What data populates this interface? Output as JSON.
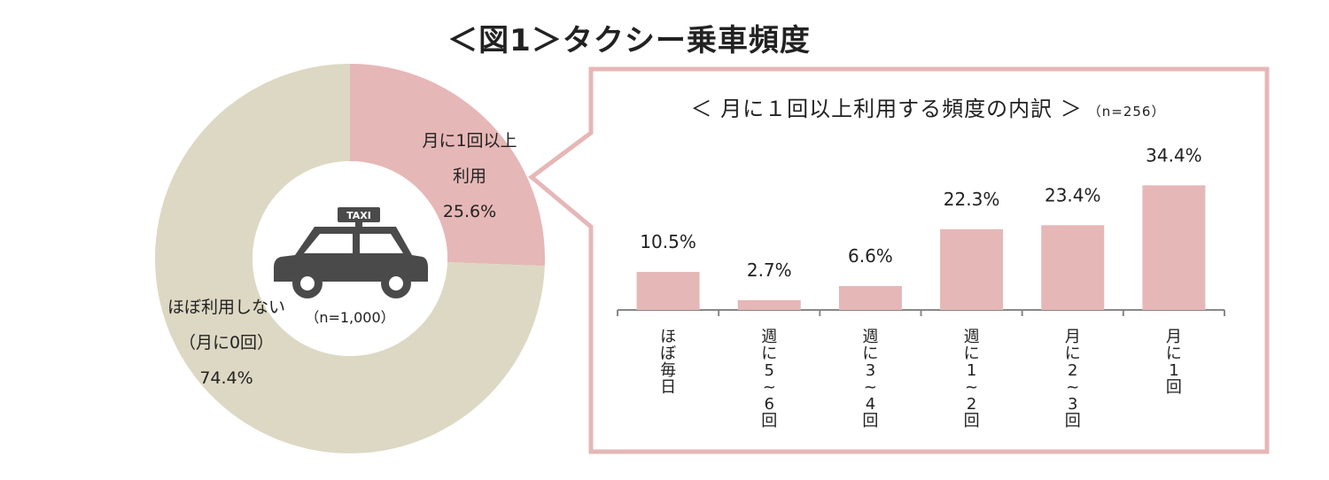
{
  "title": "＜図1＞タクシー乗車頻度",
  "donut": {
    "n": "（n=1,000）",
    "icon": "taxi-icon",
    "icon_text": "TAXI",
    "slices": [
      {
        "label_lines": [
          "月に1回以上",
          "利用"
        ],
        "value": 25.6,
        "value_label": "25.6%",
        "color": "#e6b7b7"
      },
      {
        "label_lines": [
          "ほぼ利用しない",
          "（月に0回）"
        ],
        "value": 74.4,
        "value_label": "74.4%",
        "color": "#ddd8c3"
      }
    ]
  },
  "breakdown": {
    "title": "＜ 月に１回以上利用する頻度の内訳 ＞",
    "n": "（n=256）",
    "border_color": "#e6b7b7"
  },
  "chart_data": [
    {
      "type": "pie",
      "categories": [
        "月に1回以上利用",
        "ほぼ利用しない（月に0回）"
      ],
      "values": [
        25.6,
        74.4
      ]
    },
    {
      "type": "bar",
      "title": "＜ 月に１回以上利用する頻度の内訳 ＞",
      "categories": [
        "ほぼ毎日",
        "週に5〜6回",
        "週に3〜4回",
        "週に1〜2回",
        "月に2〜3回",
        "月に1回"
      ],
      "values": [
        10.5,
        2.7,
        6.6,
        22.3,
        23.4,
        34.4
      ],
      "data_labels": [
        "10.5%",
        "2.7%",
        "6.6%",
        "22.3%",
        "23.4%",
        "34.4%"
      ],
      "color": "#e6b7b7",
      "ylim": [
        0,
        40
      ]
    }
  ]
}
